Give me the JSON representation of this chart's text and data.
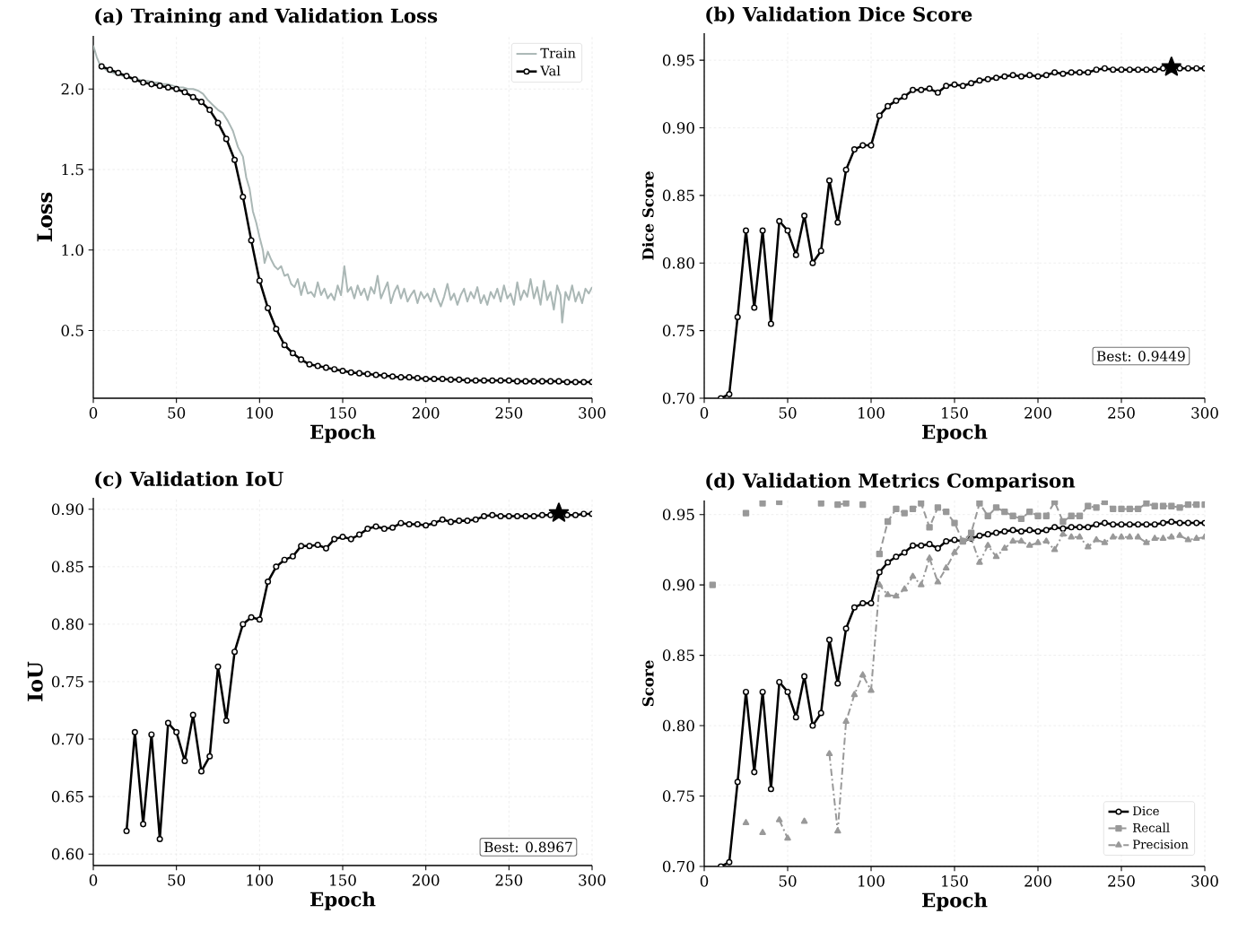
{
  "chart_data": [
    {
      "type": "line",
      "title": "(a) Training and Validation Loss",
      "xlabel": "Epoch",
      "ylabel": "Loss",
      "x": [
        5,
        10,
        15,
        20,
        25,
        30,
        35,
        40,
        45,
        50,
        55,
        60,
        65,
        70,
        75,
        80,
        85,
        90,
        95,
        100,
        105,
        110,
        115,
        120,
        125,
        130,
        135,
        140,
        145,
        150,
        155,
        160,
        165,
        170,
        175,
        180,
        185,
        190,
        195,
        200,
        205,
        210,
        215,
        220,
        225,
        230,
        235,
        240,
        245,
        250,
        255,
        260,
        265,
        270,
        275,
        280,
        285,
        290,
        295,
        300
      ],
      "series": [
        {
          "name": "Train",
          "color": "#aab7b5",
          "marker": "none",
          "line_style": "solid",
          "x": [
            0,
            2,
            4,
            6,
            9,
            12,
            15,
            18,
            21,
            24,
            27,
            30,
            33,
            36,
            39,
            42,
            45,
            48,
            51,
            54,
            57,
            60,
            63,
            66,
            69,
            72,
            75,
            78,
            81,
            84,
            87,
            90,
            92,
            94,
            96,
            98,
            100,
            102,
            103,
            105,
            107,
            109,
            111,
            113,
            115,
            117,
            119,
            121,
            123,
            125,
            127,
            129,
            131,
            133,
            135,
            137,
            139,
            141,
            143,
            145,
            147,
            149,
            151,
            153,
            155,
            157,
            159,
            161,
            163,
            165,
            167,
            169,
            171,
            173,
            175,
            177,
            179,
            181,
            183,
            185,
            187,
            189,
            191,
            193,
            195,
            197,
            199,
            201,
            203,
            205,
            207,
            209,
            211,
            213,
            215,
            217,
            219,
            221,
            223,
            225,
            227,
            229,
            231,
            233,
            235,
            237,
            239,
            241,
            243,
            245,
            247,
            249,
            251,
            253,
            255,
            257,
            259,
            261,
            263,
            265,
            267,
            269,
            271,
            273,
            275,
            277,
            279,
            281,
            282,
            284,
            286,
            288,
            290,
            292,
            294,
            296,
            298,
            300
          ],
          "values": [
            2.27,
            2.2,
            2.15,
            2.13,
            2.11,
            2.1,
            2.09,
            2.08,
            2.07,
            2.06,
            2.06,
            2.05,
            2.05,
            2.04,
            2.04,
            2.03,
            2.03,
            2.02,
            2.01,
            2.01,
            2.0,
            2.0,
            1.99,
            1.97,
            1.93,
            1.9,
            1.87,
            1.85,
            1.8,
            1.74,
            1.64,
            1.58,
            1.45,
            1.38,
            1.24,
            1.17,
            1.08,
            1.0,
            0.92,
            0.99,
            0.94,
            0.9,
            0.88,
            0.9,
            0.84,
            0.85,
            0.79,
            0.77,
            0.82,
            0.72,
            0.8,
            0.73,
            0.74,
            0.71,
            0.8,
            0.72,
            0.76,
            0.7,
            0.73,
            0.69,
            0.78,
            0.72,
            0.9,
            0.74,
            0.77,
            0.7,
            0.78,
            0.72,
            0.76,
            0.69,
            0.77,
            0.73,
            0.84,
            0.7,
            0.75,
            0.8,
            0.67,
            0.74,
            0.78,
            0.7,
            0.76,
            0.68,
            0.72,
            0.75,
            0.67,
            0.74,
            0.7,
            0.73,
            0.68,
            0.76,
            0.7,
            0.65,
            0.71,
            0.79,
            0.69,
            0.73,
            0.66,
            0.72,
            0.76,
            0.68,
            0.74,
            0.7,
            0.77,
            0.67,
            0.72,
            0.66,
            0.74,
            0.7,
            0.76,
            0.68,
            0.78,
            0.7,
            0.73,
            0.66,
            0.8,
            0.69,
            0.75,
            0.71,
            0.82,
            0.7,
            0.77,
            0.66,
            0.81,
            0.69,
            0.74,
            0.63,
            0.78,
            0.72,
            0.55,
            0.74,
            0.69,
            0.78,
            0.68,
            0.74,
            0.67,
            0.76,
            0.73,
            0.77
          ]
        },
        {
          "name": "Val",
          "color": "#000000",
          "marker": "circle",
          "line_style": "solid",
          "values": [
            2.14,
            2.12,
            2.1,
            2.08,
            2.06,
            2.04,
            2.03,
            2.02,
            2.01,
            2.0,
            1.98,
            1.95,
            1.92,
            1.87,
            1.79,
            1.69,
            1.56,
            1.33,
            1.06,
            0.81,
            0.64,
            0.51,
            0.41,
            0.36,
            0.32,
            0.29,
            0.28,
            0.27,
            0.26,
            0.25,
            0.24,
            0.235,
            0.23,
            0.225,
            0.22,
            0.215,
            0.21,
            0.21,
            0.205,
            0.2,
            0.2,
            0.2,
            0.195,
            0.195,
            0.19,
            0.19,
            0.19,
            0.19,
            0.19,
            0.19,
            0.185,
            0.185,
            0.185,
            0.185,
            0.185,
            0.185,
            0.18,
            0.18,
            0.18,
            0.18
          ]
        }
      ],
      "xlim": [
        0,
        300
      ],
      "ylim": [
        0.08,
        2.33
      ],
      "xticks": [
        0,
        50,
        100,
        150,
        200,
        250,
        300
      ],
      "yticks": [
        {
          "value": 0.5,
          "label": "0.5"
        },
        {
          "value": 1.0,
          "label": "1.0"
        },
        {
          "value": 1.5,
          "label": "1.5"
        },
        {
          "value": 2.0,
          "label": "2.0"
        }
      ],
      "grid": true,
      "legend": "top right"
    },
    {
      "type": "line",
      "title": "(b) Validation Dice Score",
      "xlabel": "Epoch",
      "ylabel": "Dice Score",
      "x": [
        10,
        15,
        20,
        25,
        30,
        35,
        40,
        45,
        50,
        55,
        60,
        65,
        70,
        75,
        80,
        85,
        90,
        95,
        100,
        105,
        110,
        115,
        120,
        125,
        130,
        135,
        140,
        145,
        150,
        155,
        160,
        165,
        170,
        175,
        180,
        185,
        190,
        195,
        200,
        205,
        210,
        215,
        220,
        225,
        230,
        235,
        240,
        245,
        250,
        255,
        260,
        265,
        270,
        275,
        280,
        285,
        290,
        295,
        300
      ],
      "series": [
        {
          "color": "#000000",
          "marker": "circle",
          "line_style": "solid",
          "values": [
            0.7,
            0.703,
            0.76,
            0.824,
            0.767,
            0.824,
            0.755,
            0.831,
            0.824,
            0.806,
            0.835,
            0.8,
            0.809,
            0.861,
            0.83,
            0.869,
            0.884,
            0.887,
            0.887,
            0.909,
            0.916,
            0.92,
            0.923,
            0.928,
            0.928,
            0.929,
            0.926,
            0.931,
            0.932,
            0.931,
            0.933,
            0.935,
            0.936,
            0.937,
            0.938,
            0.939,
            0.938,
            0.939,
            0.938,
            0.939,
            0.941,
            0.94,
            0.941,
            0.941,
            0.941,
            0.943,
            0.944,
            0.943,
            0.943,
            0.943,
            0.943,
            0.943,
            0.943,
            0.944,
            0.9449,
            0.944,
            0.944,
            0.944,
            0.944
          ]
        },
        {
          "type": "scatter",
          "color": "#000000",
          "marker": "star",
          "x": [
            280
          ],
          "values": [
            0.9449
          ]
        }
      ],
      "xlim": [
        0,
        300
      ],
      "ylim": [
        0.7,
        0.97
      ],
      "xticks": [
        0,
        50,
        100,
        150,
        200,
        250,
        300
      ],
      "yticks": [
        {
          "value": 0.7,
          "label": "0.70"
        },
        {
          "value": 0.75,
          "label": "0.75"
        },
        {
          "value": 0.8,
          "label": "0.80"
        },
        {
          "value": 0.85,
          "label": "0.85"
        },
        {
          "value": 0.9,
          "label": "0.90"
        },
        {
          "value": 0.95,
          "label": "0.95"
        }
      ],
      "grid": true,
      "annotations": [
        "Best: 0.9449"
      ]
    },
    {
      "type": "line",
      "title": "(c) Validation IoU",
      "xlabel": "Epoch",
      "ylabel": "IoU",
      "x": [
        20,
        25,
        30,
        35,
        40,
        45,
        50,
        55,
        60,
        65,
        70,
        75,
        80,
        85,
        90,
        95,
        100,
        105,
        110,
        115,
        120,
        125,
        130,
        135,
        140,
        145,
        150,
        155,
        160,
        165,
        170,
        175,
        180,
        185,
        190,
        195,
        200,
        205,
        210,
        215,
        220,
        225,
        230,
        235,
        240,
        245,
        250,
        255,
        260,
        265,
        270,
        275,
        280,
        285,
        290,
        295,
        300
      ],
      "series": [
        {
          "color": "#000000",
          "marker": "circle",
          "line_style": "solid",
          "values": [
            0.62,
            0.706,
            0.626,
            0.704,
            0.613,
            0.714,
            0.706,
            0.681,
            0.721,
            0.672,
            0.685,
            0.763,
            0.716,
            0.776,
            0.8,
            0.806,
            0.804,
            0.837,
            0.85,
            0.856,
            0.859,
            0.868,
            0.868,
            0.869,
            0.866,
            0.874,
            0.876,
            0.874,
            0.878,
            0.883,
            0.885,
            0.883,
            0.884,
            0.888,
            0.887,
            0.887,
            0.886,
            0.888,
            0.891,
            0.889,
            0.89,
            0.89,
            0.891,
            0.894,
            0.895,
            0.894,
            0.894,
            0.894,
            0.894,
            0.894,
            0.895,
            0.895,
            0.8967,
            0.895,
            0.895,
            0.896,
            0.896
          ]
        },
        {
          "type": "scatter",
          "color": "#000000",
          "marker": "star",
          "x": [
            280
          ],
          "values": [
            0.8967
          ]
        }
      ],
      "xlim": [
        0,
        300
      ],
      "ylim": [
        0.59,
        0.91
      ],
      "xticks": [
        0,
        50,
        100,
        150,
        200,
        250,
        300
      ],
      "yticks": [
        {
          "value": 0.6,
          "label": "0.60"
        },
        {
          "value": 0.65,
          "label": "0.65"
        },
        {
          "value": 0.7,
          "label": "0.70"
        },
        {
          "value": 0.75,
          "label": "0.75"
        },
        {
          "value": 0.8,
          "label": "0.80"
        },
        {
          "value": 0.85,
          "label": "0.85"
        },
        {
          "value": 0.9,
          "label": "0.90"
        }
      ],
      "grid": true,
      "annotations": [
        "Best: 0.8967"
      ]
    },
    {
      "type": "line",
      "title": "(d) Validation Metrics Comparison",
      "xlabel": "Epoch",
      "ylabel": "Score",
      "x": [
        5,
        10,
        15,
        20,
        25,
        30,
        35,
        40,
        45,
        50,
        55,
        60,
        65,
        70,
        75,
        80,
        85,
        90,
        95,
        100,
        105,
        110,
        115,
        120,
        125,
        130,
        135,
        140,
        145,
        150,
        155,
        160,
        165,
        170,
        175,
        180,
        185,
        190,
        195,
        200,
        205,
        210,
        215,
        220,
        225,
        230,
        235,
        240,
        245,
        250,
        255,
        260,
        265,
        270,
        275,
        280,
        285,
        290,
        295,
        300
      ],
      "series": [
        {
          "name": "Dice",
          "color": "#000000",
          "marker": "circle",
          "line_style": "solid",
          "values": [
            null,
            0.7,
            0.703,
            0.76,
            0.824,
            0.767,
            0.824,
            0.755,
            0.831,
            0.824,
            0.806,
            0.835,
            0.8,
            0.809,
            0.861,
            0.83,
            0.869,
            0.884,
            0.887,
            0.887,
            0.909,
            0.916,
            0.92,
            0.923,
            0.928,
            0.928,
            0.929,
            0.926,
            0.931,
            0.932,
            0.931,
            0.933,
            0.935,
            0.936,
            0.937,
            0.938,
            0.939,
            0.938,
            0.939,
            0.938,
            0.939,
            0.941,
            0.94,
            0.941,
            0.941,
            0.941,
            0.943,
            0.944,
            0.943,
            0.943,
            0.943,
            0.943,
            0.943,
            0.943,
            0.944,
            0.9449,
            0.944,
            0.944,
            0.944,
            0.944
          ]
        },
        {
          "name": "Recall",
          "color": "#999999",
          "marker": "square",
          "line_style": "dashed",
          "values": [
            0.9,
            null,
            null,
            null,
            0.951,
            null,
            0.958,
            null,
            0.959,
            null,
            null,
            null,
            null,
            0.958,
            null,
            0.957,
            0.958,
            null,
            0.957,
            null,
            0.922,
            0.945,
            0.954,
            0.951,
            0.954,
            0.958,
            0.941,
            0.955,
            0.952,
            0.944,
            0.931,
            0.937,
            0.958,
            0.949,
            0.955,
            0.952,
            0.949,
            0.947,
            0.952,
            0.949,
            0.949,
            0.959,
            0.945,
            0.949,
            0.949,
            0.956,
            0.955,
            0.959,
            0.954,
            0.954,
            0.954,
            0.954,
            0.958,
            0.956,
            0.956,
            0.956,
            0.955,
            0.957,
            0.957,
            0.957
          ]
        },
        {
          "name": "Precision",
          "color": "#999999",
          "marker": "triangle",
          "line_style": "dashdot",
          "values": [
            null,
            null,
            null,
            null,
            0.731,
            null,
            0.724,
            null,
            0.733,
            0.72,
            null,
            0.732,
            null,
            null,
            0.78,
            0.725,
            0.803,
            0.822,
            0.836,
            0.825,
            0.9,
            0.893,
            0.892,
            0.897,
            0.906,
            0.9,
            0.919,
            0.902,
            0.912,
            0.923,
            0.931,
            0.933,
            0.916,
            0.928,
            0.92,
            0.926,
            0.931,
            0.931,
            0.928,
            0.93,
            0.931,
            0.925,
            0.936,
            0.934,
            0.934,
            0.927,
            0.932,
            0.93,
            0.934,
            0.934,
            0.934,
            0.934,
            0.93,
            0.933,
            0.933,
            0.934,
            0.935,
            0.932,
            0.933,
            0.934
          ]
        }
      ],
      "xlim": [
        0,
        300
      ],
      "ylim": [
        0.7,
        0.96
      ],
      "xticks": [
        0,
        50,
        100,
        150,
        200,
        250,
        300
      ],
      "yticks": [
        {
          "value": 0.7,
          "label": "0.70"
        },
        {
          "value": 0.75,
          "label": "0.75"
        },
        {
          "value": 0.8,
          "label": "0.80"
        },
        {
          "value": 0.85,
          "label": "0.85"
        },
        {
          "value": 0.9,
          "label": "0.90"
        },
        {
          "value": 0.95,
          "label": "0.95"
        }
      ],
      "grid": true,
      "legend": "bottom right"
    }
  ]
}
